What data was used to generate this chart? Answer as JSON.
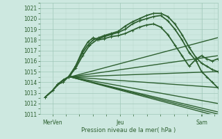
{
  "bg_color": "#cde8e0",
  "grid_major_color": "#a0c8b8",
  "grid_minor_color": "#b8d8cc",
  "line_color": "#2d6030",
  "xlabel": "Pression niveau de la mer( hPa )",
  "ylim": [
    1011.0,
    1021.5
  ],
  "yticks": [
    1011,
    1012,
    1013,
    1014,
    1015,
    1016,
    1017,
    1018,
    1019,
    1020,
    1021
  ],
  "xtick_labels": [
    "MerVen",
    "Jeu",
    "Sam"
  ],
  "xtick_positions": [
    0.07,
    0.45,
    0.91
  ],
  "xlim": [
    0.0,
    1.0
  ],
  "lines": [
    {
      "points": [
        [
          0.03,
          1012.6
        ],
        [
          0.07,
          1013.2
        ],
        [
          0.1,
          1013.8
        ],
        [
          0.13,
          1014.2
        ],
        [
          0.16,
          1014.5
        ],
        [
          0.17,
          1014.6
        ],
        [
          0.2,
          1015.5
        ],
        [
          0.24,
          1016.8
        ],
        [
          0.27,
          1017.5
        ],
        [
          0.3,
          1018.0
        ],
        [
          0.33,
          1018.2
        ],
        [
          0.36,
          1018.4
        ],
        [
          0.4,
          1018.6
        ],
        [
          0.44,
          1018.8
        ],
        [
          0.48,
          1019.3
        ],
        [
          0.52,
          1019.7
        ],
        [
          0.56,
          1020.0
        ],
        [
          0.6,
          1020.3
        ],
        [
          0.64,
          1020.5
        ],
        [
          0.68,
          1020.5
        ],
        [
          0.72,
          1020.2
        ],
        [
          0.76,
          1019.5
        ],
        [
          0.8,
          1018.5
        ],
        [
          0.84,
          1017.3
        ],
        [
          0.88,
          1016.3
        ],
        [
          0.91,
          1015.8
        ],
        [
          0.94,
          1015.5
        ],
        [
          0.97,
          1015.2
        ],
        [
          1.0,
          1015.0
        ]
      ],
      "lw": 1.3,
      "marker": true
    },
    {
      "points": [
        [
          0.03,
          1012.6
        ],
        [
          0.07,
          1013.2
        ],
        [
          0.1,
          1013.8
        ],
        [
          0.13,
          1014.2
        ],
        [
          0.16,
          1014.5
        ],
        [
          0.2,
          1015.3
        ],
        [
          0.24,
          1016.5
        ],
        [
          0.28,
          1017.5
        ],
        [
          0.32,
          1018.0
        ],
        [
          0.36,
          1018.3
        ],
        [
          0.4,
          1018.5
        ],
        [
          0.44,
          1018.7
        ],
        [
          0.48,
          1019.0
        ],
        [
          0.52,
          1019.5
        ],
        [
          0.56,
          1019.8
        ],
        [
          0.6,
          1020.0
        ],
        [
          0.64,
          1020.2
        ],
        [
          0.68,
          1020.3
        ],
        [
          0.72,
          1019.8
        ],
        [
          0.76,
          1019.0
        ],
        [
          0.8,
          1018.0
        ],
        [
          0.84,
          1016.8
        ],
        [
          0.88,
          1016.0
        ],
        [
          0.91,
          1015.0
        ],
        [
          0.94,
          1014.5
        ],
        [
          0.97,
          1014.0
        ],
        [
          1.0,
          1013.5
        ]
      ],
      "lw": 1.3,
      "marker": true
    },
    {
      "points": [
        [
          0.03,
          1012.6
        ],
        [
          0.07,
          1013.2
        ],
        [
          0.1,
          1013.8
        ],
        [
          0.13,
          1014.0
        ],
        [
          0.16,
          1014.5
        ],
        [
          0.2,
          1015.5
        ],
        [
          0.24,
          1017.0
        ],
        [
          0.27,
          1017.8
        ],
        [
          0.3,
          1018.2
        ],
        [
          0.33,
          1018.0
        ],
        [
          0.36,
          1018.1
        ],
        [
          0.4,
          1018.3
        ],
        [
          0.44,
          1018.4
        ],
        [
          0.48,
          1018.6
        ],
        [
          0.52,
          1018.9
        ],
        [
          0.56,
          1019.2
        ],
        [
          0.6,
          1019.4
        ],
        [
          0.64,
          1019.5
        ],
        [
          0.68,
          1019.2
        ],
        [
          0.72,
          1018.5
        ],
        [
          0.76,
          1017.5
        ],
        [
          0.8,
          1016.5
        ],
        [
          0.84,
          1015.5
        ],
        [
          0.88,
          1016.2
        ],
        [
          0.91,
          1016.5
        ],
        [
          0.94,
          1016.2
        ],
        [
          0.97,
          1016.0
        ],
        [
          1.0,
          1016.2
        ]
      ],
      "lw": 1.3,
      "marker": true
    },
    {
      "points": [
        [
          0.17,
          1014.5
        ],
        [
          1.0,
          1018.2
        ]
      ],
      "lw": 1.0,
      "marker": false
    },
    {
      "points": [
        [
          0.17,
          1014.5
        ],
        [
          1.0,
          1016.5
        ]
      ],
      "lw": 1.0,
      "marker": false
    },
    {
      "points": [
        [
          0.17,
          1014.5
        ],
        [
          1.0,
          1015.0
        ]
      ],
      "lw": 1.0,
      "marker": false
    },
    {
      "points": [
        [
          0.17,
          1014.5
        ],
        [
          1.0,
          1013.5
        ]
      ],
      "lw": 1.0,
      "marker": false
    },
    {
      "points": [
        [
          0.17,
          1014.5
        ],
        [
          1.0,
          1012.0
        ]
      ],
      "lw": 1.0,
      "marker": false
    },
    {
      "points": [
        [
          0.17,
          1014.5
        ],
        [
          1.0,
          1011.2
        ]
      ],
      "lw": 1.0,
      "marker": false
    },
    {
      "points": [
        [
          0.17,
          1014.5
        ],
        [
          1.0,
          1010.8
        ]
      ],
      "lw": 1.0,
      "marker": false
    },
    {
      "points": [
        [
          0.03,
          1012.6
        ],
        [
          0.07,
          1013.2
        ],
        [
          0.13,
          1014.2
        ],
        [
          0.17,
          1014.5
        ],
        [
          1.0,
          1011.0
        ]
      ],
      "lw": 1.0,
      "marker": false
    }
  ]
}
